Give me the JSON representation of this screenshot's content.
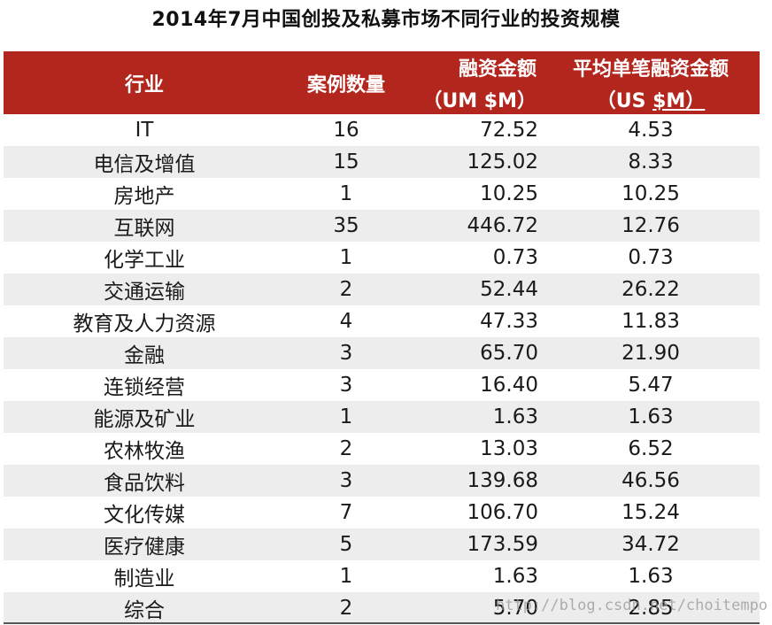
{
  "title": "2014年7月中国创投及私募市场不同行业的投资规模",
  "headers": {
    "industry": "行业",
    "count": "案例数量",
    "amount": "融资金额",
    "amount_unit": "（UM $M）",
    "avg": "平均单笔融资金额",
    "avg_unit_prefix": "（US ",
    "avg_unit_main": "$M）"
  },
  "rows": [
    {
      "industry": "IT",
      "count": "16",
      "amount": "72.52",
      "avg": "4.53"
    },
    {
      "industry": "电信及增值",
      "count": "15",
      "amount": "125.02",
      "avg": "8.33"
    },
    {
      "industry": "房地产",
      "count": "1",
      "amount": "10.25",
      "avg": "10.25"
    },
    {
      "industry": "互联网",
      "count": "35",
      "amount": "446.72",
      "avg": "12.76"
    },
    {
      "industry": "化学工业",
      "count": "1",
      "amount": "0.73",
      "avg": "0.73"
    },
    {
      "industry": "交通运输",
      "count": "2",
      "amount": "52.44",
      "avg": "26.22"
    },
    {
      "industry": "教育及人力资源",
      "count": "4",
      "amount": "47.33",
      "avg": "11.83"
    },
    {
      "industry": "金融",
      "count": "3",
      "amount": "65.70",
      "avg": "21.90"
    },
    {
      "industry": "连锁经营",
      "count": "3",
      "amount": "16.40",
      "avg": "5.47"
    },
    {
      "industry": "能源及矿业",
      "count": "1",
      "amount": "1.63",
      "avg": "1.63"
    },
    {
      "industry": "农林牧渔",
      "count": "2",
      "amount": "13.03",
      "avg": "6.52"
    },
    {
      "industry": "食品饮料",
      "count": "3",
      "amount": "139.68",
      "avg": "46.56"
    },
    {
      "industry": "文化传媒",
      "count": "7",
      "amount": "106.70",
      "avg": "15.24"
    },
    {
      "industry": "医疗健康",
      "count": "5",
      "amount": "173.59",
      "avg": "34.72"
    },
    {
      "industry": "制造业",
      "count": "1",
      "amount": "1.63",
      "avg": "1.63"
    },
    {
      "industry": "综合",
      "count": "2",
      "amount": "5.70",
      "avg": "2.85"
    }
  ],
  "watermark": "http://blog.csdn.net/choitempo",
  "colors": {
    "header_bg": "#b3261e",
    "row_alt_bg": "#ededed"
  }
}
